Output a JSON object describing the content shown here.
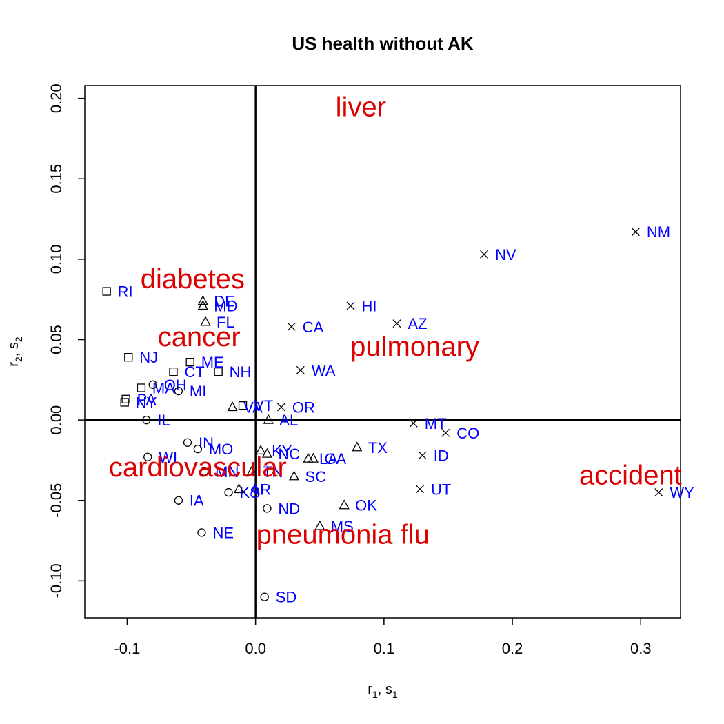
{
  "chart_data": {
    "type": "scatter",
    "title": "US health without AK",
    "xlabel": {
      "base": "r",
      "sub": "1",
      "mid": ", s",
      "sub2": "1"
    },
    "ylabel": {
      "base": "r",
      "sub": "2",
      "mid": ", s",
      "sub2": "2"
    },
    "xlim": [
      -0.133,
      0.331
    ],
    "ylim": [
      -0.123,
      0.208
    ],
    "xticks": [
      -0.1,
      0.0,
      0.1,
      0.2,
      0.3
    ],
    "xtick_labels": [
      "-0.1",
      "0.0",
      "0.1",
      "0.2",
      "0.3"
    ],
    "yticks": [
      -0.1,
      -0.05,
      0.0,
      0.05,
      0.1,
      0.15,
      0.2
    ],
    "ytick_labels": [
      "-0.10",
      "-0.05",
      "0.00",
      "0.05",
      "0.10",
      "0.15",
      "0.20"
    ],
    "reference_lines": {
      "x": 0.0,
      "y": 0.0
    },
    "grid": false,
    "colors": {
      "points": "#000000",
      "state_labels": "#0000ff",
      "variable_labels": "#dd0000"
    },
    "series": [
      {
        "marker": "square",
        "points": [
          {
            "label": "RI",
            "x": -0.116,
            "y": 0.08
          },
          {
            "label": "NJ",
            "x": -0.099,
            "y": 0.039
          },
          {
            "label": "ME",
            "x": -0.051,
            "y": 0.036
          },
          {
            "label": "NH",
            "x": -0.029,
            "y": 0.03
          },
          {
            "label": "CT",
            "x": -0.064,
            "y": 0.03
          },
          {
            "label": "MA",
            "x": -0.089,
            "y": 0.02
          },
          {
            "label": "PA",
            "x": -0.101,
            "y": 0.013
          },
          {
            "label": "NY",
            "x": -0.102,
            "y": 0.011
          },
          {
            "label": "VT",
            "x": -0.01,
            "y": 0.009
          }
        ]
      },
      {
        "marker": "circle",
        "points": [
          {
            "label": "OH",
            "x": -0.08,
            "y": 0.022
          },
          {
            "label": "MI",
            "x": -0.06,
            "y": 0.018
          },
          {
            "label": "IL",
            "x": -0.085,
            "y": 0.0
          },
          {
            "label": "IN",
            "x": -0.053,
            "y": -0.014
          },
          {
            "label": "MO",
            "x": -0.045,
            "y": -0.018
          },
          {
            "label": "WI",
            "x": -0.084,
            "y": -0.023
          },
          {
            "label": "MN",
            "x": -0.04,
            "y": -0.032
          },
          {
            "label": "IA",
            "x": -0.06,
            "y": -0.05
          },
          {
            "label": "KS",
            "x": -0.021,
            "y": -0.045
          },
          {
            "label": "ND",
            "x": 0.009,
            "y": -0.055
          },
          {
            "label": "NE",
            "x": -0.042,
            "y": -0.07
          },
          {
            "label": "SD",
            "x": 0.007,
            "y": -0.11
          }
        ]
      },
      {
        "marker": "triangle",
        "points": [
          {
            "label": "DE",
            "x": -0.041,
            "y": 0.074
          },
          {
            "label": "MD",
            "x": -0.041,
            "y": 0.071
          },
          {
            "label": "FL",
            "x": -0.039,
            "y": 0.061
          },
          {
            "label": "VA",
            "x": -0.018,
            "y": 0.008
          },
          {
            "label": "AL",
            "x": 0.01,
            "y": 0.0
          },
          {
            "label": "KY",
            "x": 0.004,
            "y": -0.019
          },
          {
            "label": "NC",
            "x": 0.009,
            "y": -0.021
          },
          {
            "label": "LA",
            "x": 0.041,
            "y": -0.024
          },
          {
            "label": "GA",
            "x": 0.045,
            "y": -0.024
          },
          {
            "label": "TX",
            "x": 0.079,
            "y": -0.017
          },
          {
            "label": "TN",
            "x": -0.003,
            "y": -0.032
          },
          {
            "label": "SC",
            "x": 0.03,
            "y": -0.035
          },
          {
            "label": "AR",
            "x": -0.013,
            "y": -0.043
          },
          {
            "label": "OK",
            "x": 0.069,
            "y": -0.053
          },
          {
            "label": "MS",
            "x": 0.05,
            "y": -0.066
          }
        ]
      },
      {
        "marker": "cross",
        "points": [
          {
            "label": "NM",
            "x": 0.296,
            "y": 0.117
          },
          {
            "label": "NV",
            "x": 0.178,
            "y": 0.103
          },
          {
            "label": "HI",
            "x": 0.074,
            "y": 0.071
          },
          {
            "label": "AZ",
            "x": 0.11,
            "y": 0.06
          },
          {
            "label": "CA",
            "x": 0.028,
            "y": 0.058
          },
          {
            "label": "WA",
            "x": 0.035,
            "y": 0.031
          },
          {
            "label": "OR",
            "x": 0.02,
            "y": 0.008
          },
          {
            "label": "MT",
            "x": 0.123,
            "y": -0.002
          },
          {
            "label": "CO",
            "x": 0.148,
            "y": -0.008
          },
          {
            "label": "ID",
            "x": 0.13,
            "y": -0.022
          },
          {
            "label": "UT",
            "x": 0.128,
            "y": -0.043
          },
          {
            "label": "WY",
            "x": 0.314,
            "y": -0.045
          }
        ]
      }
    ],
    "variables": [
      {
        "label": "liver",
        "x": 0.082,
        "y": 0.195
      },
      {
        "label": "diabetes",
        "x": -0.049,
        "y": 0.088
      },
      {
        "label": "cancer",
        "x": -0.044,
        "y": 0.052
      },
      {
        "label": "pulmonary",
        "x": 0.124,
        "y": 0.046
      },
      {
        "label": "cardiovascular",
        "x": -0.045,
        "y": -0.029
      },
      {
        "label": "accident",
        "x": 0.292,
        "y": -0.034
      },
      {
        "label": "pneumonia flu",
        "x": 0.068,
        "y": -0.071
      }
    ]
  }
}
